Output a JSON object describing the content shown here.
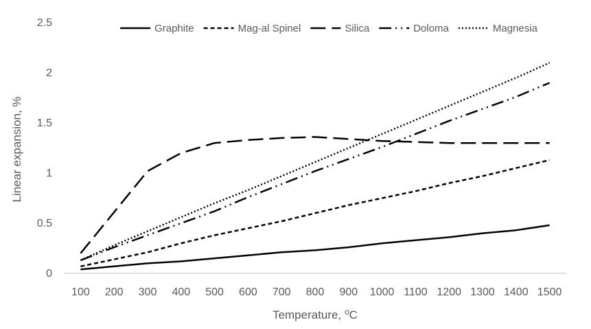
{
  "chart_data": {
    "type": "line",
    "xlabel_main": "Temperature, ",
    "xlabel_sup": "o",
    "xlabel_unit": "C",
    "ylabel": "Linear expansion, %",
    "ylim": [
      0,
      2.5
    ],
    "yticks": [
      "0",
      "0.5",
      "1",
      "1.5",
      "2",
      "2.5"
    ],
    "categories": [
      "100",
      "200",
      "300",
      "400",
      "500",
      "600",
      "700",
      "800",
      "900",
      "1000",
      "1100",
      "1200",
      "1300",
      "1400",
      "1500"
    ],
    "legend_position": "top",
    "grid": false,
    "series": [
      {
        "name": "Graphite",
        "dash": "solid",
        "values": [
          0.04,
          0.07,
          0.1,
          0.12,
          0.15,
          0.18,
          0.21,
          0.23,
          0.26,
          0.3,
          0.33,
          0.36,
          0.4,
          0.43,
          0.48
        ]
      },
      {
        "name": "Mag-al Spinel",
        "dash": "short-dash",
        "values": [
          0.07,
          0.14,
          0.21,
          0.3,
          0.38,
          0.45,
          0.52,
          0.6,
          0.68,
          0.75,
          0.82,
          0.9,
          0.97,
          1.05,
          1.13
        ]
      },
      {
        "name": "Silica",
        "dash": "long-dash",
        "values": [
          0.2,
          0.61,
          1.02,
          1.2,
          1.3,
          1.33,
          1.35,
          1.36,
          1.34,
          1.32,
          1.31,
          1.3,
          1.3,
          1.3,
          1.3
        ]
      },
      {
        "name": "Doloma",
        "dash": "long-dash-dot-dot",
        "values": [
          0.13,
          0.26,
          0.38,
          0.5,
          0.62,
          0.76,
          0.89,
          1.02,
          1.14,
          1.26,
          1.39,
          1.52,
          1.64,
          1.76,
          1.9
        ]
      },
      {
        "name": "Magnesia",
        "dash": "dotted",
        "values": [
          0.13,
          0.28,
          0.42,
          0.56,
          0.7,
          0.83,
          0.97,
          1.11,
          1.25,
          1.39,
          1.53,
          1.67,
          1.81,
          1.95,
          2.1
        ]
      }
    ],
    "colors": {
      "line": "#000000",
      "axis": "#bfbfbf",
      "text": "#595959"
    }
  }
}
